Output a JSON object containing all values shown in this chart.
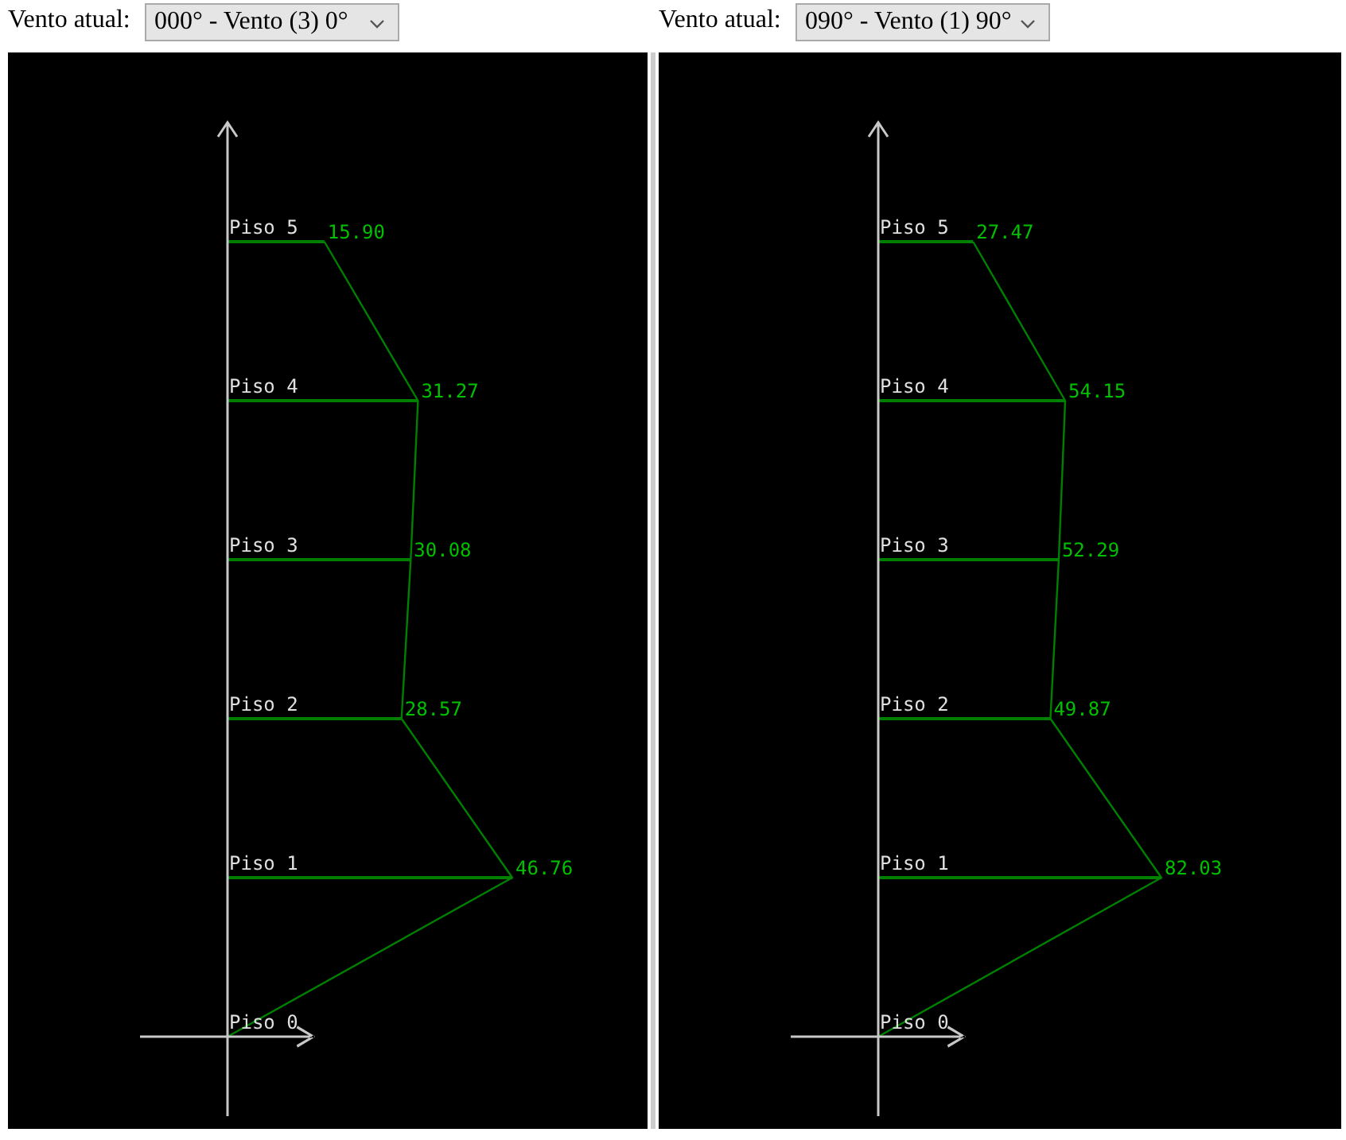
{
  "chart_data": [
    {
      "type": "bar",
      "orientation": "horizontal",
      "title": "Vento atual:",
      "subtitle": "000° - Vento (3) 0°",
      "categories": [
        "Piso 5",
        "Piso 4",
        "Piso 3",
        "Piso 2",
        "Piso 1",
        "Piso 0"
      ],
      "marker": "none",
      "series": [
        {
          "type": "bar",
          "color": "#008000",
          "values": [
            15.9,
            31.27,
            30.08,
            28.57,
            46.76,
            0
          ]
        },
        {
          "type": "line",
          "color": "#008000",
          "values": [
            15.9,
            31.27,
            30.08,
            28.57,
            46.76,
            0
          ],
          "value_labels": [
            "15.90",
            "31.27",
            "30.08",
            "28.57",
            "46.76",
            null
          ]
        }
      ]
    },
    {
      "type": "bar",
      "orientation": "horizontal",
      "title": "Vento atual:",
      "subtitle": "090° - Vento (1) 90°",
      "categories": [
        "Piso 5",
        "Piso 4",
        "Piso 3",
        "Piso 2",
        "Piso 1",
        "Piso 0"
      ],
      "marker": "none",
      "series": [
        {
          "type": "bar",
          "color": "#008000",
          "values": [
            27.47,
            54.15,
            52.29,
            49.87,
            82.03,
            0
          ]
        },
        {
          "type": "line",
          "color": "#008000",
          "values": [
            27.47,
            54.15,
            52.29,
            49.87,
            82.03,
            0
          ],
          "value_labels": [
            "27.47",
            "54.15",
            "52.29",
            "49.87",
            "82.03",
            null
          ]
        }
      ]
    }
  ]
}
